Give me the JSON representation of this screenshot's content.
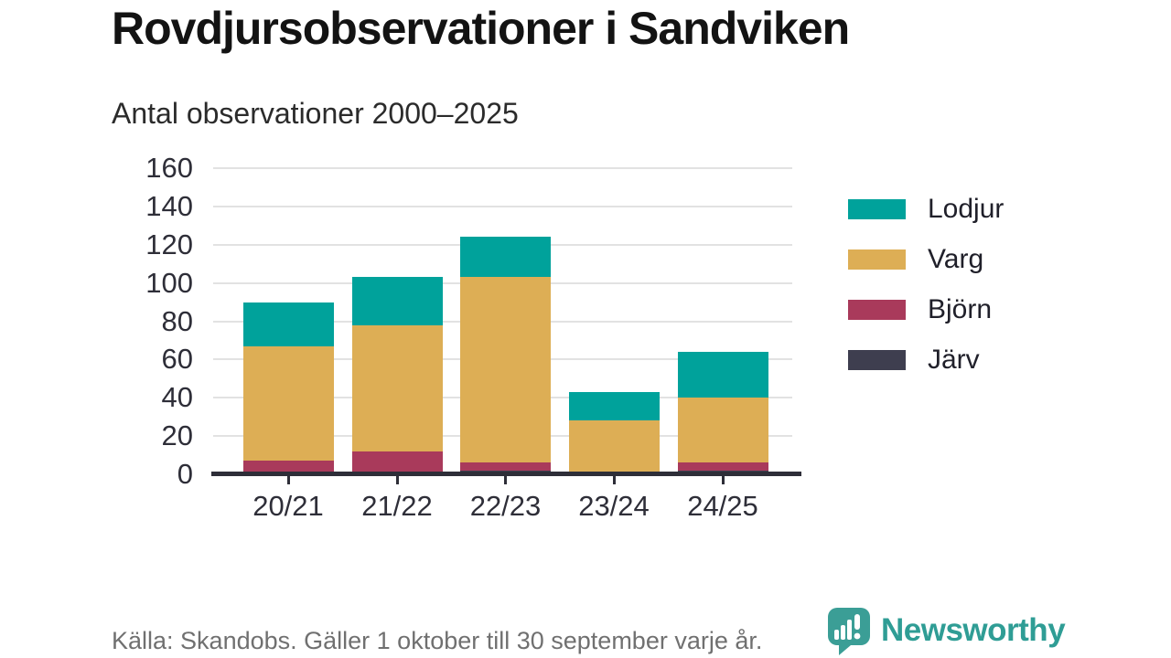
{
  "title": "Rovdjursobservationer i Sandviken",
  "subtitle": "Antal observationer 2000–2025",
  "footer": {
    "source_note": "Källa: Skandobs. Gäller 1 oktober till 30 september varje år."
  },
  "branding": {
    "logo_text": "Newsworthy",
    "logo_color": "#2f9d95",
    "logo_icon": "speech-bubble-bar-chart-exclamation"
  },
  "colors": {
    "lodjur_teal": "#00A29B",
    "varg_gold": "#DDAE55",
    "bjorn_maroon": "#A93A5B",
    "jarv_dark": "#3E3E4F",
    "axis_dark": "#2e2e38",
    "gridline_gray": "#e2e2e2",
    "footer_gray": "#707070"
  },
  "chart_data": {
    "type": "bar",
    "stacked": true,
    "title": "Rovdjursobservationer i Sandviken",
    "subtitle": "Antal observationer 2000–2025",
    "categories": [
      "20/21",
      "21/22",
      "22/23",
      "23/24",
      "24/25"
    ],
    "series": [
      {
        "name": "Järv",
        "color": "#3E3E4F",
        "values": [
          1,
          1,
          2,
          0,
          2
        ]
      },
      {
        "name": "Björn",
        "color": "#A93A5B",
        "values": [
          6,
          11,
          4,
          1,
          4
        ]
      },
      {
        "name": "Varg",
        "color": "#DDAE55",
        "values": [
          60,
          66,
          97,
          27,
          34
        ]
      },
      {
        "name": "Lodjur",
        "color": "#00A29B",
        "values": [
          23,
          25,
          21,
          15,
          24
        ]
      }
    ],
    "totals": [
      90,
      103,
      124,
      43,
      64
    ],
    "legend": [
      {
        "label": "Lodjur",
        "color": "#00A29B"
      },
      {
        "label": "Varg",
        "color": "#DDAE55"
      },
      {
        "label": "Björn",
        "color": "#A93A5B"
      },
      {
        "label": "Järv",
        "color": "#3E3E4F"
      }
    ],
    "legend_position": "right",
    "grid": true,
    "xlabel": "",
    "ylabel": "",
    "ylim": [
      0,
      160
    ],
    "y_ticks": [
      0,
      20,
      40,
      60,
      80,
      100,
      120,
      140,
      160
    ]
  }
}
